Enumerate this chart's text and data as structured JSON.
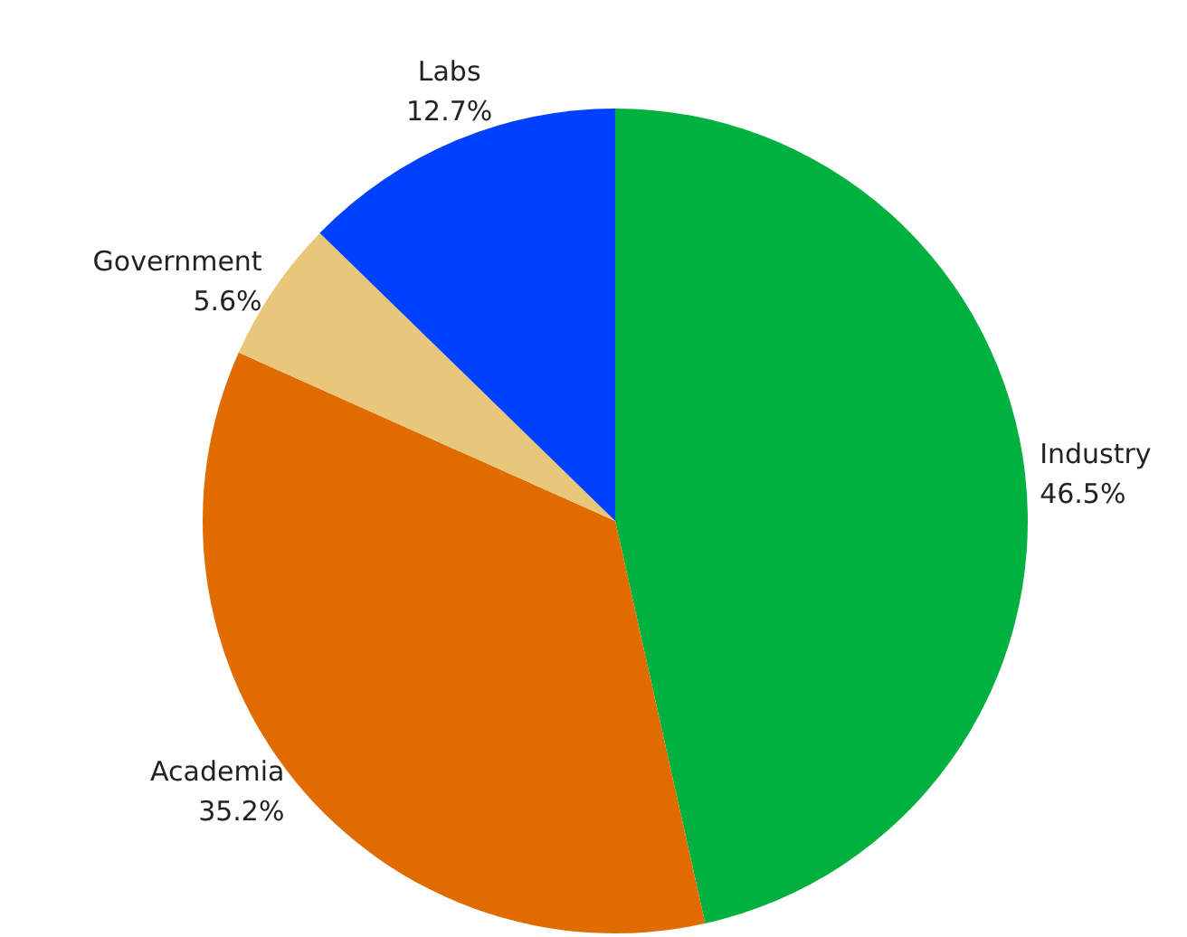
{
  "chart_data": {
    "type": "pie",
    "categories": [
      "Industry",
      "Academia",
      "Government",
      "Labs"
    ],
    "values": [
      46.5,
      35.2,
      5.6,
      12.7
    ],
    "colors": [
      "#00b140",
      "#e06c00",
      "#e8c77a",
      "#0040ff"
    ],
    "value_labels": [
      "46.5%",
      "35.2%",
      "5.6%",
      "12.7%"
    ]
  }
}
